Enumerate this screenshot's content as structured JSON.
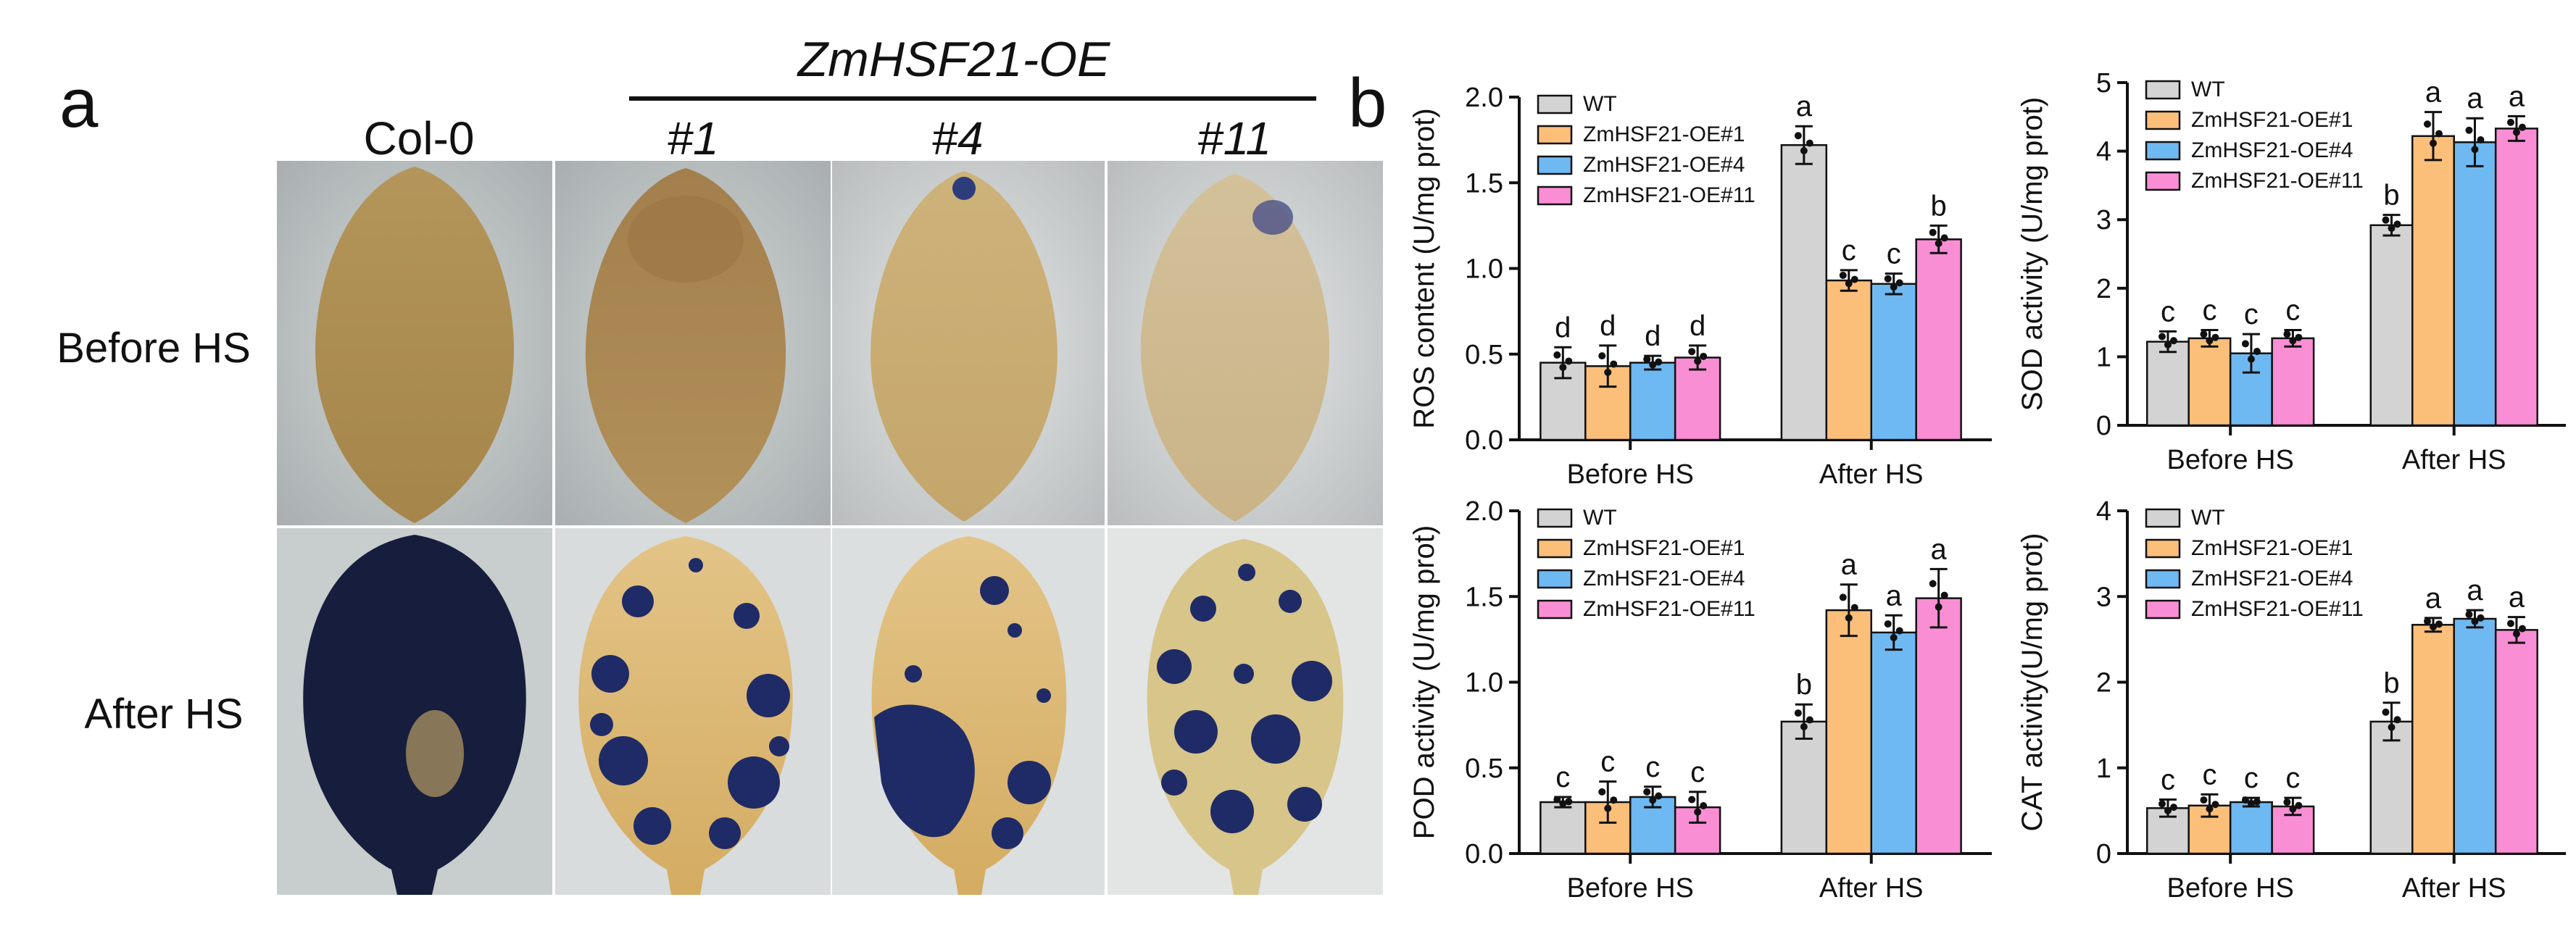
{
  "panel_a": {
    "label": "a",
    "group_label": "ZmHSF21-OE",
    "columns": [
      "Col-0",
      "#1",
      "#4",
      "#11"
    ],
    "rows": [
      "Before HS",
      "After HS"
    ]
  },
  "panel_b": {
    "label": "b"
  },
  "series_colors": [
    "#d3d3d3",
    "#fbbf7a",
    "#6fb9f2",
    "#f98ed5"
  ],
  "chart_data": [
    {
      "type": "bar",
      "categories": [
        "Before HS",
        "After HS"
      ],
      "ylabel": "ROS content (U/mg prot)",
      "ylim": [
        0,
        2.0
      ],
      "yticks": [
        "0.0",
        "0.5",
        "1.0",
        "1.5",
        "2.0"
      ],
      "legend": "top-left",
      "series": [
        {
          "name": "WT",
          "values": [
            0.45,
            1.72
          ],
          "errors": [
            0.09,
            0.11
          ],
          "letters": [
            "d",
            "a"
          ]
        },
        {
          "name": "ZmHSF21-OE#1",
          "values": [
            0.43,
            0.93
          ],
          "errors": [
            0.12,
            0.06
          ],
          "letters": [
            "d",
            "c"
          ]
        },
        {
          "name": "ZmHSF21-OE#4",
          "values": [
            0.45,
            0.91
          ],
          "errors": [
            0.04,
            0.06
          ],
          "letters": [
            "d",
            "c"
          ]
        },
        {
          "name": "ZmHSF21-OE#11",
          "values": [
            0.48,
            1.17
          ],
          "errors": [
            0.07,
            0.08
          ],
          "letters": [
            "d",
            "b"
          ]
        }
      ]
    },
    {
      "type": "bar",
      "categories": [
        "Before HS",
        "After HS"
      ],
      "ylabel": "SOD activity (U/mg prot)",
      "ylim": [
        0,
        5
      ],
      "yticks": [
        "0",
        "1",
        "2",
        "3",
        "4",
        "5"
      ],
      "legend": "top-left",
      "series": [
        {
          "name": "WT",
          "values": [
            1.22,
            2.92
          ],
          "errors": [
            0.15,
            0.15
          ],
          "letters": [
            "c",
            "b"
          ]
        },
        {
          "name": "ZmHSF21-OE#1",
          "values": [
            1.27,
            4.22
          ],
          "errors": [
            0.12,
            0.35
          ],
          "letters": [
            "c",
            "a"
          ]
        },
        {
          "name": "ZmHSF21-OE#4",
          "values": [
            1.05,
            4.13
          ],
          "errors": [
            0.28,
            0.35
          ],
          "letters": [
            "c",
            "a"
          ]
        },
        {
          "name": "ZmHSF21-OE#11",
          "values": [
            1.27,
            4.33
          ],
          "errors": [
            0.12,
            0.18
          ],
          "letters": [
            "c",
            "a"
          ]
        }
      ]
    },
    {
      "type": "bar",
      "categories": [
        "Before HS",
        "After HS"
      ],
      "ylabel": "POD activity (U/mg prot)",
      "ylim": [
        0,
        2.0
      ],
      "yticks": [
        "0.0",
        "0.5",
        "1.0",
        "1.5",
        "2.0"
      ],
      "legend": "top-left",
      "series": [
        {
          "name": "WT",
          "values": [
            0.3,
            0.77
          ],
          "errors": [
            0.03,
            0.1
          ],
          "letters": [
            "c",
            "b"
          ]
        },
        {
          "name": "ZmHSF21-OE#1",
          "values": [
            0.3,
            1.42
          ],
          "errors": [
            0.12,
            0.15
          ],
          "letters": [
            "c",
            "a"
          ]
        },
        {
          "name": "ZmHSF21-OE#4",
          "values": [
            0.33,
            1.29
          ],
          "errors": [
            0.06,
            0.1
          ],
          "letters": [
            "c",
            "a"
          ]
        },
        {
          "name": "ZmHSF21-OE#11",
          "values": [
            0.27,
            1.49
          ],
          "errors": [
            0.09,
            0.17
          ],
          "letters": [
            "c",
            "a"
          ]
        }
      ]
    },
    {
      "type": "bar",
      "categories": [
        "Before HS",
        "After HS"
      ],
      "ylabel": "CAT activity(U/mg prot)",
      "ylim": [
        0,
        4
      ],
      "yticks": [
        "0",
        "1",
        "2",
        "3",
        "4"
      ],
      "legend": "top-left",
      "series": [
        {
          "name": "WT",
          "values": [
            0.53,
            1.54
          ],
          "errors": [
            0.1,
            0.22
          ],
          "letters": [
            "c",
            "b"
          ]
        },
        {
          "name": "ZmHSF21-OE#1",
          "values": [
            0.56,
            2.67
          ],
          "errors": [
            0.13,
            0.08
          ],
          "letters": [
            "c",
            "a"
          ]
        },
        {
          "name": "ZmHSF21-OE#4",
          "values": [
            0.6,
            2.74
          ],
          "errors": [
            0.05,
            0.1
          ],
          "letters": [
            "c",
            "a"
          ]
        },
        {
          "name": "ZmHSF21-OE#11",
          "values": [
            0.55,
            2.61
          ],
          "errors": [
            0.1,
            0.15
          ],
          "letters": [
            "c",
            "a"
          ]
        }
      ]
    }
  ]
}
